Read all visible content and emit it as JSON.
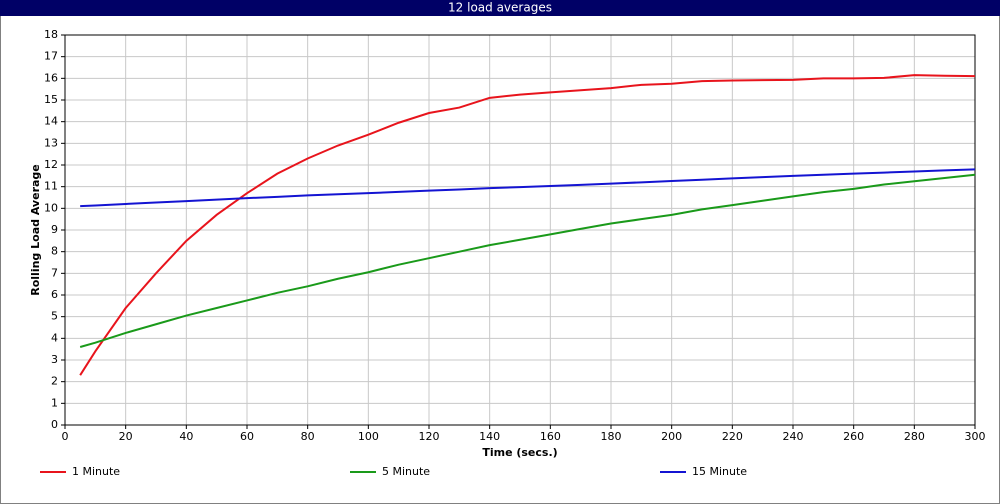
{
  "chart_data": {
    "type": "line",
    "title": "12 load averages",
    "x_label": "Time (secs.)",
    "y_label": "Rolling Load Average",
    "x": [
      5,
      10,
      20,
      30,
      40,
      50,
      60,
      70,
      80,
      90,
      100,
      110,
      120,
      130,
      140,
      150,
      160,
      170,
      180,
      190,
      200,
      210,
      220,
      230,
      240,
      250,
      260,
      270,
      280,
      290,
      300
    ],
    "series": [
      {
        "name": "1 Minute",
        "color": "#e8141c",
        "values": [
          2.3,
          3.4,
          5.4,
          7.0,
          8.5,
          9.7,
          10.7,
          11.6,
          12.3,
          12.9,
          13.4,
          13.95,
          14.4,
          14.65,
          15.1,
          15.25,
          15.35,
          15.45,
          15.55,
          15.7,
          15.75,
          15.87,
          15.9,
          15.92,
          15.93,
          16.0,
          16.0,
          16.02,
          16.15,
          16.12,
          16.1
        ]
      },
      {
        "name": "5 Minute",
        "color": "#1a9a1a",
        "values": [
          3.6,
          3.8,
          4.25,
          4.65,
          5.05,
          5.4,
          5.75,
          6.1,
          6.4,
          6.75,
          7.05,
          7.4,
          7.7,
          8.0,
          8.3,
          8.55,
          8.8,
          9.05,
          9.3,
          9.5,
          9.7,
          9.95,
          10.15,
          10.35,
          10.55,
          10.75,
          10.9,
          11.1,
          11.25,
          11.4,
          11.55
        ]
      },
      {
        "name": "15 Minute",
        "color": "#1414d2",
        "values": [
          10.1,
          10.13,
          10.2,
          10.27,
          10.33,
          10.4,
          10.47,
          10.53,
          10.6,
          10.65,
          10.7,
          10.76,
          10.82,
          10.87,
          10.93,
          10.98,
          11.03,
          11.08,
          11.14,
          11.2,
          11.26,
          11.32,
          11.38,
          11.44,
          11.5,
          11.55,
          11.6,
          11.65,
          11.7,
          11.75,
          11.8
        ]
      }
    ],
    "xlim": [
      0,
      300
    ],
    "xticks": [
      0,
      20,
      40,
      60,
      80,
      100,
      120,
      140,
      160,
      180,
      200,
      220,
      240,
      260,
      280,
      300
    ],
    "ylim": [
      0,
      18
    ],
    "yticks": [
      0,
      1,
      2,
      3,
      4,
      5,
      6,
      7,
      8,
      9,
      10,
      11,
      12,
      13,
      14,
      15,
      16,
      17,
      18
    ],
    "grid": true,
    "legend": "bottom"
  }
}
